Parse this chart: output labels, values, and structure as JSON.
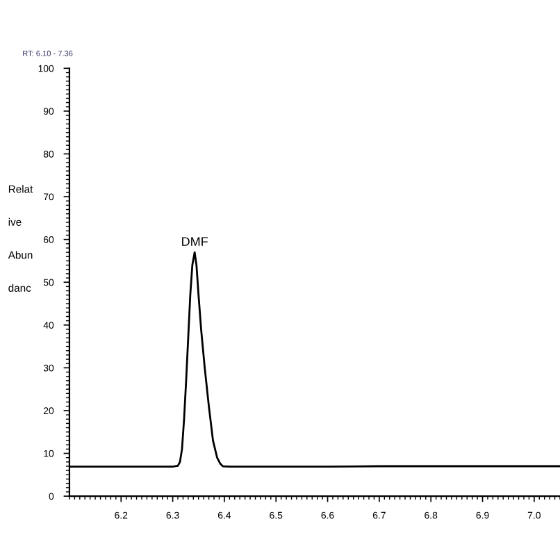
{
  "chart_data": {
    "type": "line",
    "ylabel": "Relat\nive\nAbun\ndanc",
    "x": [
      6.1,
      6.2,
      6.3,
      6.31,
      6.314,
      6.318,
      6.322,
      6.326,
      6.33,
      6.334,
      6.338,
      6.3425,
      6.346,
      6.35,
      6.355,
      6.362,
      6.37,
      6.378,
      6.386,
      6.392,
      6.397,
      6.41,
      6.5,
      6.6,
      6.7,
      6.8,
      6.9,
      7.0,
      7.05
    ],
    "series": [
      {
        "color": "#000000",
        "values": [
          6.9,
          6.9,
          6.9,
          7.1,
          8,
          11,
          18,
          27,
          37,
          47,
          54,
          57,
          54,
          47,
          39,
          30,
          21,
          13,
          9,
          7.6,
          7.0,
          6.9,
          6.9,
          6.9,
          7,
          7,
          7,
          7,
          7
        ]
      }
    ],
    "annotations": [
      {
        "text": "DMF",
        "x": 6.3425,
        "y": 57
      },
      "RT: 6.10 - 7.36"
    ],
    "xlim": [
      6.1,
      7.05
    ],
    "ylim": [
      0,
      100
    ],
    "xticks": [
      6.2,
      6.3,
      6.4,
      6.5,
      6.6,
      6.7,
      6.8,
      6.9,
      {
        "value": 7.0,
        "label": "7.0"
      }
    ],
    "yticks": [
      0,
      10,
      20,
      30,
      40,
      50,
      60,
      70,
      80,
      90,
      100
    ],
    "grid": false,
    "legend": false,
    "marker": "none",
    "line_style": "solid"
  }
}
